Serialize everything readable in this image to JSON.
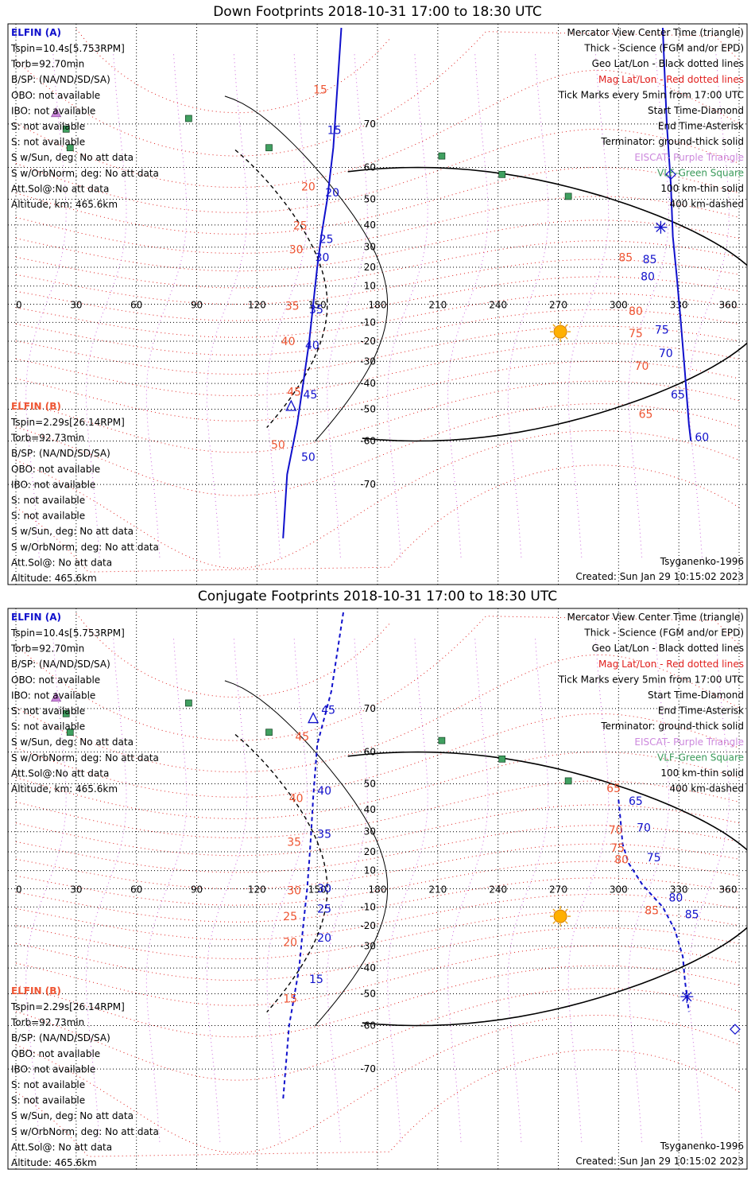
{
  "panels": [
    {
      "title": "Down Footprints 2018-10-31 17:00 to 18:30 UTC",
      "elfin_a": {
        "header": "ELFIN (A)",
        "lines": [
          "Tspin=10.4s[5.753RPM]",
          "Torb=92.70min",
          "B/SP: (NA/ND/SD/SA)",
          "OBO: not available",
          "IBO: not available",
          "S: not available",
          "S: not available",
          "S w/Sun, deg: No att data",
          "S w/OrbNorm, deg: No att data",
          "Att.Sol@:No att data",
          "Altitude, km: 465.6km"
        ]
      },
      "elfin_b": {
        "header": "ELFIN (B)",
        "lines": [
          "Tspin=2.29s[26.14RPM]",
          "Torb=92.73min",
          "B/SP: (NA/ND/SD/SA)",
          "OBO: not available",
          "IBO: not available",
          "S: not available",
          "S: not available",
          "S w/Sun, deg: No att data",
          "S w/OrbNorm, deg: No att data",
          "Att.Sol@: No att data",
          "Altitude: 465.6km"
        ]
      },
      "legend": [
        {
          "text": "Mercator View Center Time (triangle)",
          "color": "#000000"
        },
        {
          "text": "Thick - Science (FGM and/or EPD)",
          "color": "#000000"
        },
        {
          "text": "Geo Lat/Lon - Black dotted lines",
          "color": "#000000"
        },
        {
          "text": "Mag Lat/Lon - Red dotted lines",
          "color": "#e0201e"
        },
        {
          "text": "Tick Marks every 5min from 17:00 UTC",
          "color": "#000000"
        },
        {
          "text": "Start Time-Diamond",
          "color": "#000000"
        },
        {
          "text": "End Time-Asterisk",
          "color": "#000000"
        },
        {
          "text": "Terminator: ground-thick solid",
          "color": "#000000"
        },
        {
          "text": "EISCAT- Purple Triangle",
          "color": "#cc88dd"
        },
        {
          "text": "VLF-Green Square",
          "color": "#3a9a5a"
        },
        {
          "text": "100 km-thin solid",
          "color": "#000000"
        },
        {
          "text": "400 km-dashed",
          "color": "#000000"
        }
      ],
      "footer_model": "Tsyganenko-1996",
      "footer_created": "Created: Sun Jan 29 10:15:02 2023",
      "chart_data": {
        "type": "map",
        "projection": "mercator",
        "x_ticks": [
          0,
          30,
          60,
          90,
          120,
          150,
          180,
          210,
          240,
          270,
          300,
          330,
          360
        ],
        "y_ticks": [
          70,
          60,
          50,
          40,
          30,
          20,
          10,
          -10,
          -20,
          -30,
          -40,
          -50,
          -60,
          -70
        ],
        "xlim": [
          0,
          360
        ],
        "ylim": [
          -82,
          82
        ],
        "sun": {
          "lon": 271,
          "lat": -15
        },
        "elfin_a_track": {
          "color": "#1010cc",
          "points": [
            [
              322,
              82
            ],
            [
              324,
              70
            ],
            [
              326,
              55
            ],
            [
              327,
              35
            ],
            [
              329,
              15
            ],
            [
              331,
              -10
            ],
            [
              333,
              -35
            ],
            [
              335,
              -55
            ],
            [
              336,
              -60
            ]
          ],
          "tick_labels": [
            [
              "85",
              312,
              22
            ],
            [
              "80",
              311,
              13
            ],
            [
              "75",
              318,
              -16
            ],
            [
              "70",
              320,
              -28
            ],
            [
              "65",
              326,
              -46
            ],
            [
              "60",
              338,
              -60
            ]
          ],
          "start_diamond": [
            326,
            58
          ],
          "end_asterisk": [
            321,
            39
          ]
        },
        "elfin_b_track": {
          "color": "#1010cc",
          "points": [
            [
              162,
              82
            ],
            [
              158,
              65
            ],
            [
              155,
              50
            ],
            [
              152,
              35
            ],
            [
              150,
              20
            ],
            [
              148,
              0
            ],
            [
              146,
              -20
            ],
            [
              143,
              -40
            ],
            [
              140,
              -55
            ],
            [
              135,
              -68
            ],
            [
              133,
              -78
            ]
          ],
          "tick_labels": [
            [
              "15",
              155,
              68
            ],
            [
              "20",
              154,
              51
            ],
            [
              "25",
              151,
              32
            ],
            [
              "30",
              149,
              23
            ],
            [
              "35",
              146,
              -5
            ],
            [
              "40",
              144,
              -24
            ],
            [
              "45",
              143,
              -46
            ],
            [
              "50",
              142,
              -65
            ]
          ],
          "view_triangle": [
            137,
            -49
          ]
        },
        "elfin_a_mag_labels": [
          [
            "85",
            300,
            23
          ],
          [
            "80",
            305,
            -6
          ],
          [
            "75",
            305,
            -18
          ],
          [
            "70",
            308,
            -34
          ],
          [
            "65",
            310,
            -53
          ]
        ],
        "elfin_b_mag_labels": [
          [
            "15",
            148,
            75
          ],
          [
            "20",
            142,
            53
          ],
          [
            "25",
            138,
            38
          ],
          [
            "30",
            136,
            27
          ],
          [
            "35",
            134,
            -3
          ],
          [
            "40",
            132,
            -22
          ],
          [
            "45",
            135,
            -45
          ],
          [
            "50",
            127,
            -62
          ]
        ],
        "eiscat": [
          [
            20,
            72
          ]
        ],
        "vlf": [
          [
            25,
            69
          ],
          [
            27,
            65
          ],
          [
            86,
            71
          ],
          [
            126,
            65
          ],
          [
            212,
            63
          ],
          [
            242,
            58
          ],
          [
            275,
            51
          ]
        ]
      }
    },
    {
      "title": "Conjugate Footprints 2018-10-31 17:00 to 18:30 UTC",
      "elfin_a": {
        "header": "ELFIN (A)",
        "lines": [
          "Tspin=10.4s[5.753RPM]",
          "Torb=92.70min",
          "B/SP: (NA/ND/SD/SA)",
          "OBO: not available",
          "IBO: not available",
          "S: not available",
          "S: not available",
          "S w/Sun, deg: No att data",
          "S w/OrbNorm, deg: No att data",
          "Att.Sol@:No att data",
          "Altitude, km: 465.6km"
        ]
      },
      "elfin_b": {
        "header": "ELFIN (B)",
        "lines": [
          "Tspin=2.29s[26.14RPM]",
          "Torb=92.73min",
          "B/SP: (NA/ND/SD/SA)",
          "OBO: not available",
          "IBO: not available",
          "S: not available",
          "S: not available",
          "S w/Sun, deg: No att data",
          "S w/OrbNorm, deg: No att data",
          "Att.Sol@: No att data",
          "Altitude: 465.6km"
        ]
      },
      "legend": [
        {
          "text": "Mercator View Center Time (triangle)",
          "color": "#000000"
        },
        {
          "text": "Thick - Science (FGM and/or EPD)",
          "color": "#000000"
        },
        {
          "text": "Geo Lat/Lon - Black dotted lines",
          "color": "#000000"
        },
        {
          "text": "Mag Lat/Lon - Red dotted lines",
          "color": "#e0201e"
        },
        {
          "text": "Tick Marks every 5min from 17:00 UTC",
          "color": "#000000"
        },
        {
          "text": "Start Time-Diamond",
          "color": "#000000"
        },
        {
          "text": "End Time-Asterisk",
          "color": "#000000"
        },
        {
          "text": "Terminator: ground-thick solid",
          "color": "#000000"
        },
        {
          "text": "EISCAT- Purple Triangle",
          "color": "#cc88dd"
        },
        {
          "text": "VLF-Green Square",
          "color": "#3a9a5a"
        },
        {
          "text": "100 km-thin solid",
          "color": "#000000"
        },
        {
          "text": "400 km-dashed",
          "color": "#000000"
        }
      ],
      "footer_model": "Tsyganenko-1996",
      "footer_created": "Created: Sun Jan 29 10:15:02 2023",
      "chart_data": {
        "type": "map",
        "projection": "mercator",
        "x_ticks": [
          0,
          30,
          60,
          90,
          120,
          150,
          180,
          210,
          240,
          270,
          300,
          330,
          360
        ],
        "y_ticks": [
          70,
          60,
          50,
          40,
          30,
          20,
          10,
          -10,
          -20,
          -30,
          -40,
          -50,
          -60,
          -70
        ],
        "xlim": [
          0,
          360
        ],
        "ylim": [
          -82,
          82
        ],
        "sun": {
          "lon": 271,
          "lat": -15
        },
        "elfin_a_track": {
          "color": "#1010cc",
          "points": [
            [
              300,
              44
            ],
            [
              301,
              35
            ],
            [
              302,
              24
            ],
            [
              305,
              14
            ],
            [
              312,
              2
            ],
            [
              322,
              -10
            ],
            [
              328,
              -22
            ],
            [
              332,
              -35
            ],
            [
              333,
              -45
            ],
            [
              335,
              -56
            ]
          ],
          "tick_labels": [
            [
              "65",
              305,
              42
            ],
            [
              "70",
              309,
              30
            ],
            [
              "75",
              314,
              15
            ],
            [
              "80",
              325,
              -7
            ],
            [
              "85",
              333,
              -16
            ]
          ],
          "start_diamond": [
            358,
            -61
          ],
          "end_asterisk": [
            334,
            -51
          ]
        },
        "elfin_b_track": {
          "color": "#1010cc",
          "points": [
            [
              163,
              82
            ],
            [
              157,
              73
            ],
            [
              150,
              62
            ],
            [
              148,
              45
            ],
            [
              147,
              30
            ],
            [
              146,
              15
            ],
            [
              145,
              0
            ],
            [
              143,
              -20
            ],
            [
              141,
              -40
            ],
            [
              136,
              -60
            ],
            [
              133,
              -75
            ]
          ],
          "tick_labels": [
            [
              "45",
              152,
              69
            ],
            [
              "40",
              150,
              46
            ],
            [
              "35",
              150,
              27
            ],
            [
              "30",
              150,
              -2
            ],
            [
              "25",
              150,
              -13
            ],
            [
              "20",
              150,
              -28
            ],
            [
              "15",
              146,
              -46
            ]
          ],
          "view_triangle": [
            148,
            68
          ]
        },
        "elfin_a_mag_labels": [
          [
            "65",
            294,
            47
          ],
          [
            "70",
            295,
            29
          ],
          [
            "75",
            296,
            20
          ],
          [
            "80",
            298,
            14
          ],
          [
            "85",
            313,
            -14
          ]
        ],
        "elfin_b_mag_labels": [
          [
            "45",
            139,
            63
          ],
          [
            "40",
            136,
            43
          ],
          [
            "35",
            135,
            23
          ],
          [
            "30",
            135,
            -3
          ],
          [
            "25",
            133,
            -17
          ],
          [
            "20",
            133,
            -30
          ],
          [
            "15",
            133,
            -53
          ]
        ],
        "eiscat": [
          [
            20,
            72
          ]
        ],
        "vlf": [
          [
            25,
            69
          ],
          [
            27,
            65
          ],
          [
            86,
            71
          ],
          [
            126,
            65
          ],
          [
            212,
            63
          ],
          [
            242,
            58
          ],
          [
            275,
            51
          ]
        ]
      }
    }
  ]
}
